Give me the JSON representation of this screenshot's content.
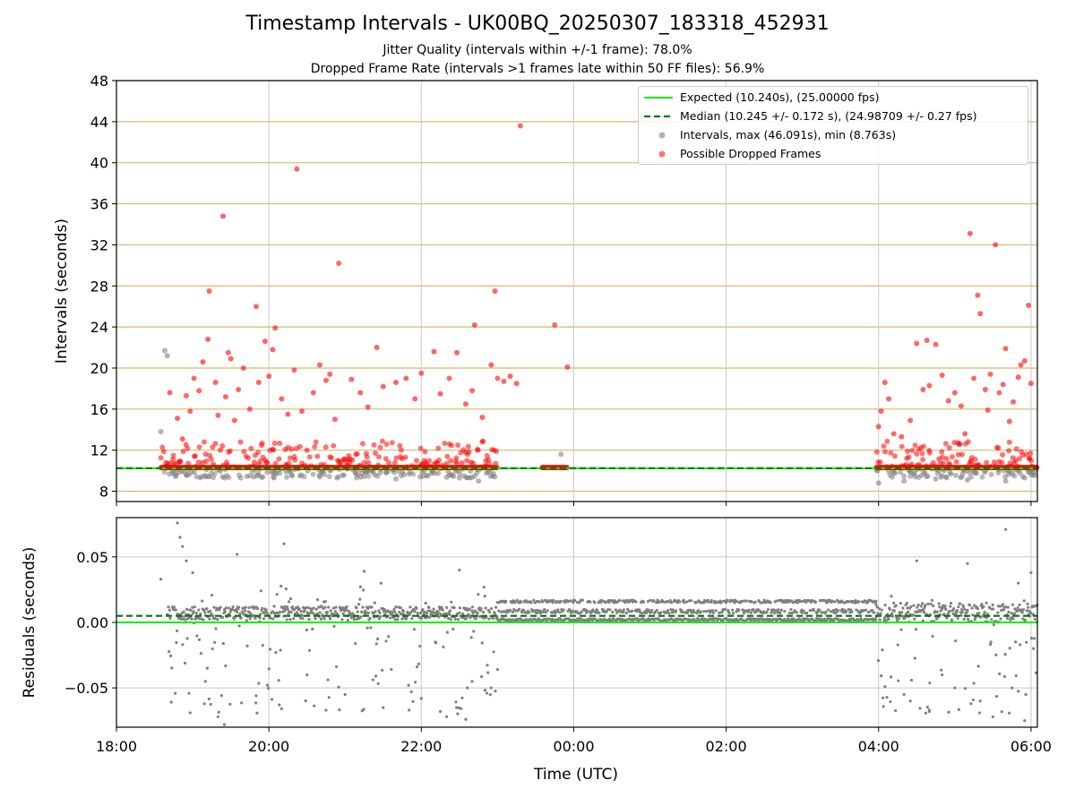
{
  "header": {
    "title": "Timestamp Intervals - UK00BQ_20250307_183318_452931",
    "subtitle1": "Jitter Quality (intervals within +/-1 frame): 78.0%",
    "subtitle2": "Dropped Frame Rate (intervals >1 frames late within 50 FF files): 56.9%"
  },
  "colors": {
    "expected": "#00ee00",
    "median": "#007700",
    "intervals": "#808080",
    "dropped": "#ff0000",
    "grid_top": "#d4b96b",
    "grid": "#c8c8c8"
  },
  "chart_data": [
    {
      "type": "scatter",
      "title": "Timestamp Intervals - UK00BQ_20250307_183318_452931",
      "xlabel": "",
      "ylabel": "Intervals (seconds)",
      "xlim": [
        "18:00",
        "06:05"
      ],
      "ylim": [
        7,
        48
      ],
      "yticks": [
        "8",
        "12",
        "16",
        "20",
        "24",
        "28",
        "32",
        "36",
        "40",
        "44",
        "48"
      ],
      "grid": true,
      "legend_position": "top-right",
      "legend": [
        "Expected (10.240s), (25.00000 fps)",
        "Median (10.245 +/- 0.172 s), (24.98709 +/- 0.27 fps)",
        "Intervals, max (46.091s), min (8.763s)",
        "Possible Dropped Frames"
      ],
      "reference_lines": {
        "expected": 10.24,
        "median": 10.245
      },
      "observation_segments": [
        [
          "18:35",
          "23:00"
        ],
        [
          "23:35",
          "23:55"
        ],
        [
          "03:58",
          "06:05"
        ]
      ],
      "series": [
        {
          "name": "Intervals, max (46.091s), min (8.763s)",
          "points": [
            [
              "18:35",
              13.8
            ],
            [
              "18:38",
              21.7
            ],
            [
              "18:40",
              21.2
            ],
            [
              "18:55",
              9.6
            ],
            [
              "19:10",
              9.4
            ],
            [
              "19:25",
              9.3
            ],
            [
              "19:45",
              9.5
            ],
            [
              "20:05",
              9.8
            ],
            [
              "20:40",
              9.4
            ],
            [
              "21:10",
              9.6
            ],
            [
              "21:40",
              9.2
            ],
            [
              "22:05",
              9.5
            ],
            [
              "22:30",
              9.3
            ],
            [
              "22:45",
              9.0
            ],
            [
              "23:50",
              11.6
            ],
            [
              "04:00",
              8.8
            ],
            [
              "04:20",
              9.0
            ],
            [
              "04:45",
              9.2
            ],
            [
              "05:10",
              9.1
            ],
            [
              "05:40",
              9.0
            ],
            [
              "05:55",
              9.3
            ]
          ]
        },
        {
          "name": "Possible Dropped Frames",
          "points": [
            [
              "18:42",
              17.6
            ],
            [
              "18:48",
              15.1
            ],
            [
              "18:52",
              13.1
            ],
            [
              "18:55",
              17.3
            ],
            [
              "18:58",
              15.8
            ],
            [
              "19:01",
              19.0
            ],
            [
              "19:05",
              17.8
            ],
            [
              "19:08",
              20.6
            ],
            [
              "19:12",
              22.8
            ],
            [
              "19:13",
              27.5
            ],
            [
              "19:18",
              18.6
            ],
            [
              "19:20",
              15.4
            ],
            [
              "19:24",
              34.8
            ],
            [
              "19:26",
              17.2
            ],
            [
              "19:28",
              21.5
            ],
            [
              "19:30",
              20.9
            ],
            [
              "19:33",
              14.9
            ],
            [
              "19:36",
              17.9
            ],
            [
              "19:40",
              20.0
            ],
            [
              "19:45",
              16.0
            ],
            [
              "19:50",
              26.0
            ],
            [
              "19:52",
              18.6
            ],
            [
              "19:57",
              22.6
            ],
            [
              "20:00",
              19.2
            ],
            [
              "20:03",
              21.8
            ],
            [
              "20:05",
              23.9
            ],
            [
              "20:10",
              17.0
            ],
            [
              "20:15",
              15.5
            ],
            [
              "20:20",
              19.8
            ],
            [
              "20:22",
              39.4
            ],
            [
              "20:26",
              15.8
            ],
            [
              "20:30",
              12.0
            ],
            [
              "20:35",
              17.6
            ],
            [
              "20:40",
              20.3
            ],
            [
              "20:45",
              18.8
            ],
            [
              "20:48",
              19.4
            ],
            [
              "20:52",
              15.0
            ],
            [
              "20:55",
              30.2
            ],
            [
              "21:05",
              18.9
            ],
            [
              "21:12",
              17.6
            ],
            [
              "21:18",
              16.2
            ],
            [
              "21:25",
              22.0
            ],
            [
              "21:30",
              18.2
            ],
            [
              "21:40",
              18.6
            ],
            [
              "21:48",
              19.0
            ],
            [
              "21:55",
              17.0
            ],
            [
              "22:00",
              19.5
            ],
            [
              "22:10",
              21.6
            ],
            [
              "22:15",
              17.5
            ],
            [
              "22:22",
              19.0
            ],
            [
              "22:28",
              21.5
            ],
            [
              "22:35",
              16.5
            ],
            [
              "22:40",
              17.8
            ],
            [
              "22:42",
              24.2
            ],
            [
              "22:48",
              15.2
            ],
            [
              "22:55",
              20.3
            ],
            [
              "22:58",
              27.5
            ],
            [
              "23:00",
              19.0
            ],
            [
              "23:05",
              18.7
            ],
            [
              "23:10",
              19.2
            ],
            [
              "23:15",
              18.5
            ],
            [
              "23:18",
              43.6
            ],
            [
              "23:45",
              24.2
            ],
            [
              "23:55",
              20.1
            ],
            [
              "04:00",
              14.3
            ],
            [
              "04:02",
              15.8
            ],
            [
              "04:05",
              18.6
            ],
            [
              "04:08",
              17.0
            ],
            [
              "04:12",
              13.6
            ],
            [
              "04:18",
              13.3
            ],
            [
              "04:25",
              14.9
            ],
            [
              "04:30",
              22.4
            ],
            [
              "04:35",
              17.9
            ],
            [
              "04:38",
              22.7
            ],
            [
              "04:40",
              18.3
            ],
            [
              "04:45",
              22.3
            ],
            [
              "04:50",
              19.3
            ],
            [
              "04:55",
              16.8
            ],
            [
              "05:00",
              17.6
            ],
            [
              "05:05",
              16.3
            ],
            [
              "05:08",
              13.6
            ],
            [
              "05:12",
              33.1
            ],
            [
              "05:15",
              19.0
            ],
            [
              "05:18",
              27.1
            ],
            [
              "05:20",
              25.3
            ],
            [
              "05:24",
              17.9
            ],
            [
              "05:26",
              15.9
            ],
            [
              "05:28",
              19.4
            ],
            [
              "05:32",
              32.0
            ],
            [
              "05:35",
              17.6
            ],
            [
              "05:38",
              18.4
            ],
            [
              "05:40",
              21.9
            ],
            [
              "05:43",
              14.8
            ],
            [
              "05:46",
              16.7
            ],
            [
              "05:50",
              19.1
            ],
            [
              "05:52",
              20.3
            ],
            [
              "05:55",
              20.7
            ],
            [
              "05:58",
              26.1
            ],
            [
              "06:00",
              18.5
            ]
          ]
        }
      ]
    },
    {
      "type": "scatter",
      "xlabel": "Time (UTC)",
      "ylabel": "Residuals (seconds)",
      "xlim": [
        "18:00",
        "06:05"
      ],
      "ylim": [
        -0.08,
        0.08
      ],
      "xticks": [
        "18:00",
        "20:00",
        "22:00",
        "00:00",
        "02:00",
        "04:00",
        "06:00"
      ],
      "yticks": [
        "−0.05",
        "0.00",
        "0.05"
      ],
      "ytick_values": [
        -0.05,
        0,
        0.05
      ],
      "grid": true,
      "reference_lines": {
        "expected": 0.0,
        "median": 0.005
      },
      "steady_band": [
        0.0,
        0.016
      ],
      "series": [
        {
          "name": "Residuals",
          "points": [
            [
              "18:35",
              0.033
            ],
            [
              "18:48",
              0.076
            ],
            [
              "18:50",
              0.065
            ],
            [
              "18:52",
              0.058
            ],
            [
              "18:55",
              0.047
            ],
            [
              "18:58",
              -0.069
            ],
            [
              "19:00",
              0.038
            ],
            [
              "19:10",
              -0.045
            ],
            [
              "19:20",
              -0.072
            ],
            [
              "19:25",
              -0.078
            ],
            [
              "19:35",
              0.052
            ],
            [
              "19:50",
              -0.056
            ],
            [
              "20:10",
              -0.066
            ],
            [
              "20:12",
              0.06
            ],
            [
              "20:30",
              -0.04
            ],
            [
              "20:45",
              -0.067
            ],
            [
              "21:00",
              -0.055
            ],
            [
              "21:15",
              0.039
            ],
            [
              "21:30",
              -0.065
            ],
            [
              "21:50",
              -0.048
            ],
            [
              "22:00",
              -0.058
            ],
            [
              "22:15",
              -0.068
            ],
            [
              "22:20",
              -0.072
            ],
            [
              "22:30",
              0.04
            ],
            [
              "22:35",
              -0.074
            ],
            [
              "22:40",
              -0.045
            ],
            [
              "22:50",
              0.02
            ],
            [
              "22:55",
              -0.05
            ],
            [
              "23:00",
              -0.036
            ],
            [
              "04:05",
              -0.049
            ],
            [
              "04:10",
              0.02
            ],
            [
              "04:20",
              -0.055
            ],
            [
              "04:25",
              -0.06
            ],
            [
              "04:30",
              0.047
            ],
            [
              "04:40",
              -0.068
            ],
            [
              "04:50",
              -0.04
            ],
            [
              "05:00",
              -0.05
            ],
            [
              "05:10",
              0.045
            ],
            [
              "05:20",
              -0.06
            ],
            [
              "05:30",
              -0.072
            ],
            [
              "05:40",
              0.071
            ],
            [
              "05:45",
              -0.05
            ],
            [
              "05:50",
              0.03
            ],
            [
              "05:55",
              -0.075
            ],
            [
              "06:00",
              0.038
            ],
            [
              "06:02",
              -0.02
            ]
          ]
        }
      ]
    }
  ]
}
